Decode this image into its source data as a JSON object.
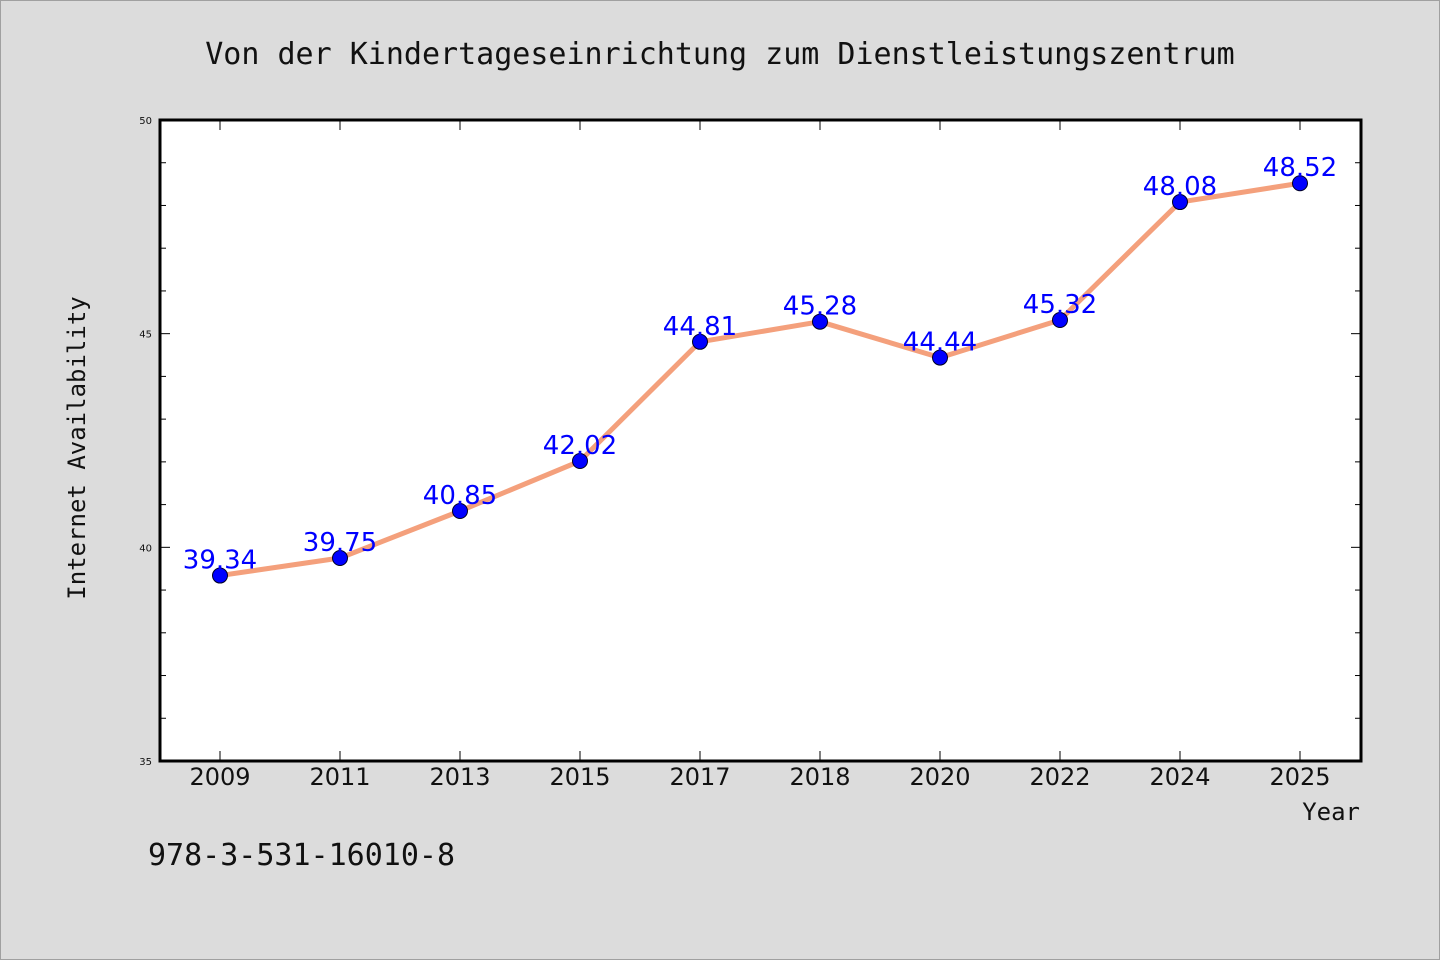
{
  "chart_data": {
    "type": "line",
    "title": "Von der Kindertageseinrichtung zum Dienstleistungszentrum",
    "xlabel": "Year",
    "ylabel": "Internet Availability",
    "categories": [
      "2009",
      "2011",
      "2013",
      "2015",
      "2017",
      "2018",
      "2020",
      "2022",
      "2024",
      "2025"
    ],
    "series": [
      {
        "values": [
          39.34,
          39.75,
          40.85,
          42.02,
          44.81,
          45.28,
          44.44,
          45.32,
          48.08,
          48.52
        ],
        "labels": [
          "39.34",
          "39.75",
          "40.85",
          "42.02",
          "44.81",
          "45.28",
          "44.44",
          "45.32",
          "48.08",
          "48.52"
        ],
        "line_color": "#f4a07c",
        "marker_color": "#0000ff"
      }
    ],
    "ylim": [
      35,
      50
    ],
    "yticks": [
      "35",
      "40",
      "45",
      "50"
    ],
    "grid": false,
    "legend": "none"
  },
  "footer": {
    "isbn": "978-3-531-16010-8"
  }
}
